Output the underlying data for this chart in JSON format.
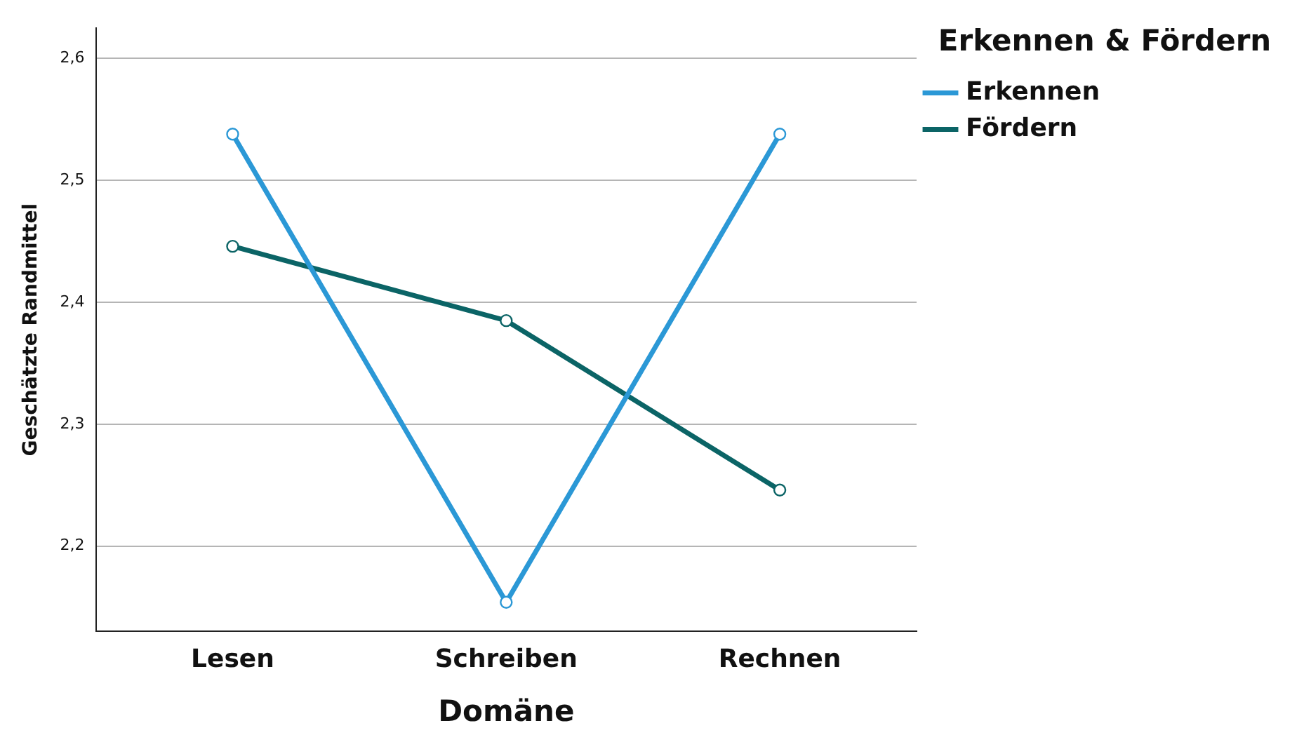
{
  "chart_data": {
    "type": "line",
    "xlabel": "Domäne",
    "ylabel": "Geschätzte Randmittel",
    "legend_title": "Erkennen & Fördern",
    "categories": [
      "Lesen",
      "Schreiben",
      "Rechnen"
    ],
    "series": [
      {
        "name": "Erkennen",
        "color": "#2b98d6",
        "values": [
          2.538,
          2.154,
          2.538
        ]
      },
      {
        "name": "Fördern",
        "color": "#0b6466",
        "values": [
          2.446,
          2.385,
          2.246
        ]
      }
    ],
    "ylim": [
      2.13,
      2.625
    ],
    "yticks": [
      {
        "value": 2.2,
        "label": "2,2"
      },
      {
        "value": 2.3,
        "label": "2,3"
      },
      {
        "value": 2.4,
        "label": "2,4"
      },
      {
        "value": 2.5,
        "label": "2,5"
      },
      {
        "value": 2.6,
        "label": "2,6"
      }
    ],
    "grid": "y",
    "legend": "top right",
    "marker": "circle",
    "line_style": "solid"
  }
}
